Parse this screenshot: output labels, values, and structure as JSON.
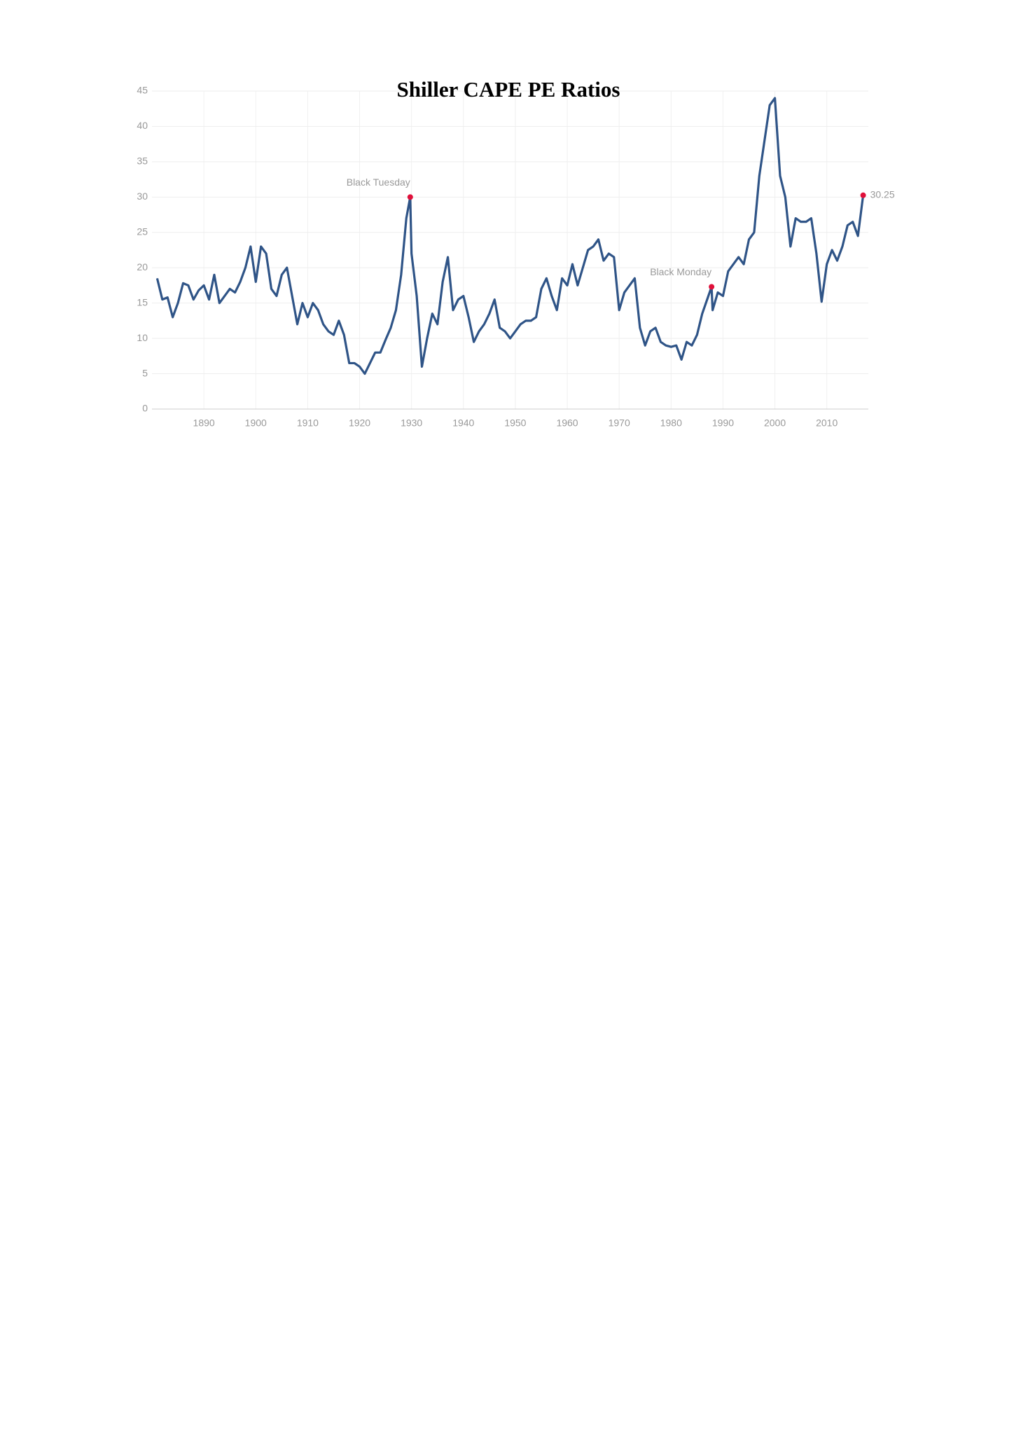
{
  "chart_data": {
    "type": "line",
    "title": "Shiller CAPE PE Ratios",
    "x": [
      1881,
      1882,
      1883,
      1884,
      1885,
      1886,
      1887,
      1888,
      1889,
      1890,
      1891,
      1892,
      1893,
      1894,
      1895,
      1896,
      1897,
      1898,
      1899,
      1900,
      1901,
      1902,
      1903,
      1904,
      1905,
      1906,
      1907,
      1908,
      1909,
      1910,
      1911,
      1912,
      1913,
      1914,
      1915,
      1916,
      1917,
      1918,
      1919,
      1920,
      1921,
      1922,
      1923,
      1924,
      1925,
      1926,
      1927,
      1928,
      1929,
      1929.75,
      1930,
      1931,
      1932,
      1933,
      1934,
      1935,
      1936,
      1937,
      1938,
      1939,
      1940,
      1941,
      1942,
      1943,
      1944,
      1945,
      1946,
      1947,
      1948,
      1949,
      1950,
      1951,
      1952,
      1953,
      1954,
      1955,
      1956,
      1957,
      1958,
      1959,
      1960,
      1961,
      1962,
      1963,
      1964,
      1965,
      1966,
      1967,
      1968,
      1969,
      1970,
      1971,
      1972,
      1973,
      1974,
      1975,
      1976,
      1977,
      1978,
      1979,
      1980,
      1981,
      1982,
      1983,
      1984,
      1985,
      1986,
      1987.8,
      1988,
      1989,
      1990,
      1991,
      1992,
      1993,
      1994,
      1995,
      1996,
      1997,
      1998,
      1999,
      2000,
      2001,
      2002,
      2003,
      2004,
      2005,
      2006,
      2007,
      2008,
      2009,
      2010,
      2011,
      2012,
      2013,
      2014,
      2015,
      2016,
      2017
    ],
    "series": [
      {
        "color": "#2f5487",
        "values": [
          18.5,
          15.5,
          15.8,
          13.0,
          15.0,
          17.8,
          17.5,
          15.5,
          16.8,
          17.5,
          15.5,
          19.0,
          15.0,
          16.0,
          17.0,
          16.5,
          18.0,
          20.0,
          23.0,
          18.0,
          23.0,
          22.0,
          17.0,
          16.0,
          19.0,
          20.0,
          16.0,
          12.0,
          15.0,
          13.0,
          15.0,
          14.0,
          12.0,
          11.0,
          10.5,
          12.5,
          10.5,
          6.5,
          6.5,
          6.0,
          5.0,
          6.5,
          8.0,
          8.0,
          9.8,
          11.5,
          14.0,
          19.0,
          27.0,
          30.0,
          22.0,
          16.0,
          6.0,
          10.0,
          13.5,
          12.0,
          18.0,
          21.5,
          14.0,
          15.5,
          16.0,
          13.0,
          9.5,
          11.0,
          12.0,
          13.5,
          15.5,
          11.5,
          11.0,
          10.0,
          11.0,
          12.0,
          12.5,
          12.5,
          13.0,
          17.0,
          18.5,
          16.0,
          14.0,
          18.5,
          17.5,
          20.5,
          17.5,
          20.0,
          22.5,
          23.0,
          24.0,
          21.0,
          22.0,
          21.5,
          14.0,
          16.5,
          17.5,
          18.5,
          11.5,
          9.0,
          11.0,
          11.5,
          9.5,
          9.0,
          8.8,
          9.0,
          7.0,
          9.5,
          9.0,
          10.5,
          13.5,
          17.3,
          14.0,
          16.5,
          16.0,
          19.5,
          20.5,
          21.5,
          20.5,
          24.0,
          25.0,
          33.0,
          38.0,
          43.0,
          44.0,
          33.0,
          30.0,
          23.0,
          27.0,
          26.5,
          26.5,
          27.0,
          22.0,
          15.2,
          20.5,
          22.5,
          21.0,
          23.0,
          26.0,
          26.5,
          24.5,
          30.25
        ]
      }
    ],
    "annotations": [
      {
        "text": "Black Tuesday",
        "x": 1929.75,
        "y": 30.0
      },
      {
        "text": "Black Monday",
        "x": 1987.8,
        "y": 17.3
      },
      {
        "text": "30.25",
        "x": 2017,
        "y": 30.25
      }
    ],
    "marker_color": "#e0103a",
    "xlim": [
      1880,
      2018
    ],
    "xticks": [
      1890,
      1900,
      1910,
      1920,
      1930,
      1940,
      1950,
      1960,
      1970,
      1980,
      1990,
      2000,
      2010
    ],
    "ylim": [
      0,
      45
    ],
    "yticks": [
      0,
      5,
      10,
      15,
      20,
      25,
      30,
      35,
      40,
      45
    ],
    "grid": true
  }
}
